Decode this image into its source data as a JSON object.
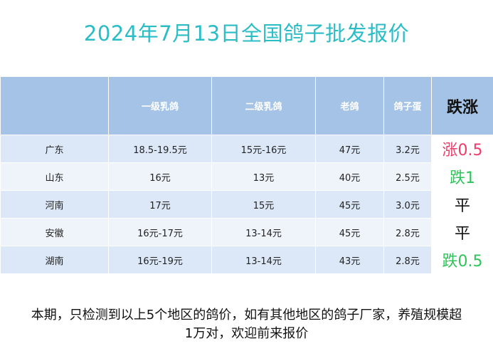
{
  "title": "2024年7月13日全国鸽子批发报价",
  "table": {
    "headers": [
      "",
      "一级乳鸽",
      "二级乳鸽",
      "老鸽",
      "鸽子蛋",
      "跌涨"
    ],
    "rows": [
      {
        "region": "广东",
        "grade1": "18.5-19.5元",
        "grade2": "15元-16元",
        "old": "47元",
        "egg": "3.2元",
        "change": "涨0.5",
        "trend": "up"
      },
      {
        "region": "山东",
        "grade1": "16元",
        "grade2": "13元",
        "old": "40元",
        "egg": "2.5元",
        "change": "跌1",
        "trend": "down"
      },
      {
        "region": "河南",
        "grade1": "17元",
        "grade2": "15元",
        "old": "45元",
        "egg": "3.0元",
        "change": "平",
        "trend": "flat"
      },
      {
        "region": "安徽",
        "grade1": "16元-17元",
        "grade2": "13-14元",
        "old": "45元",
        "egg": "2.8元",
        "change": "平",
        "trend": "flat"
      },
      {
        "region": "湖南",
        "grade1": "16元-19元",
        "grade2": "13-14元",
        "old": "43元",
        "egg": "2.8元",
        "change": "跌0.5",
        "trend": "down"
      }
    ]
  },
  "note": {
    "line1": "本期，只检测到以上5个地区的鸽价，如有其他地区的鸽子厂家，养殖规模超",
    "line2": "1万对，欢迎前来报价"
  },
  "colors": {
    "title": "#2bbcc6",
    "header_bg": "#a4c3e6",
    "up": "#f03a6a",
    "down": "#2ec45a"
  }
}
